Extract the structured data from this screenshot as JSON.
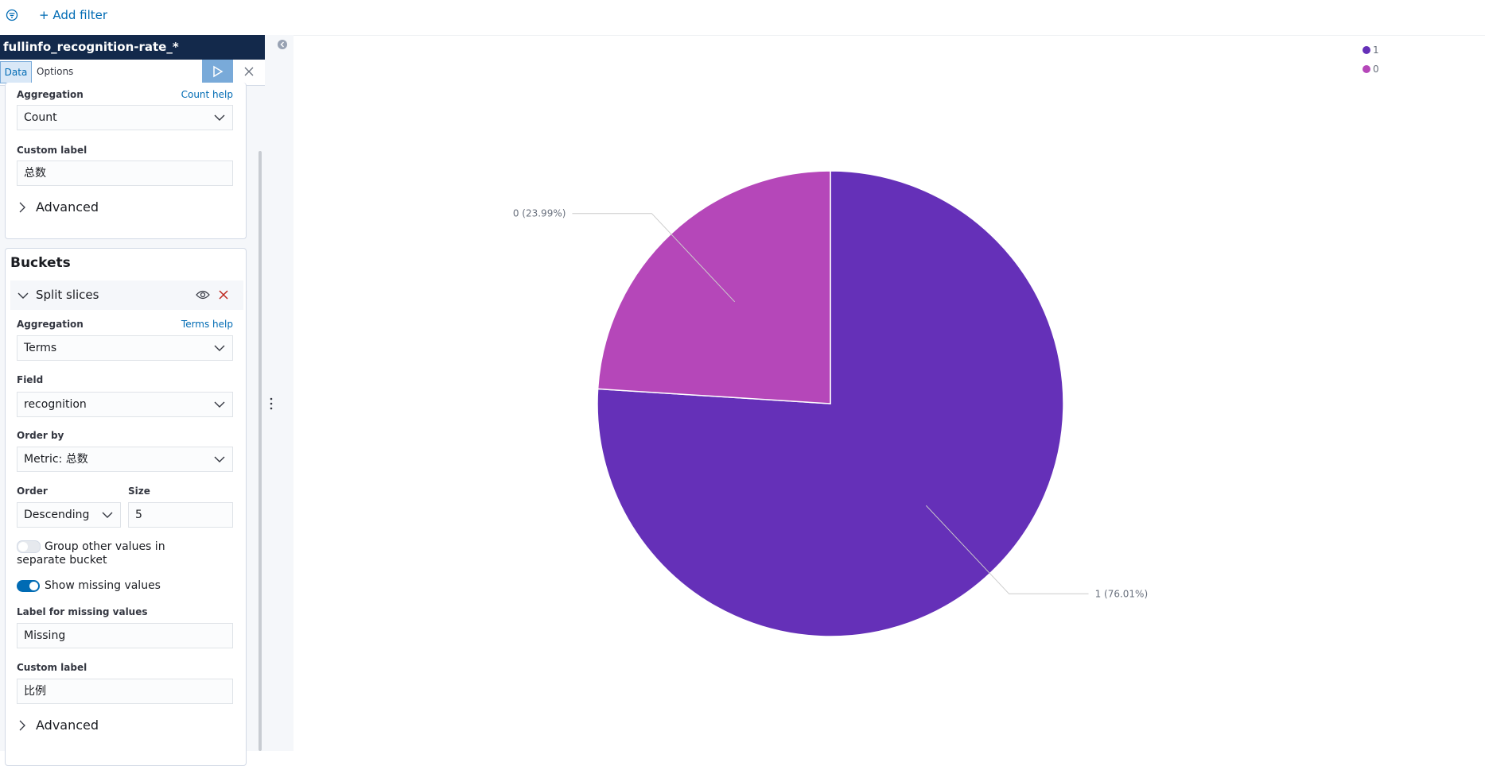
{
  "filter_bar": {
    "add_filter": "+ Add filter"
  },
  "sidebar": {
    "index_pattern": "fullinfo_recognition-rate_*",
    "tabs": [
      "Data",
      "Options"
    ],
    "metrics": {
      "aggregation_label": "Aggregation",
      "help": "Count help",
      "aggregation": "Count",
      "custom_label_label": "Custom label",
      "custom_label": "总数",
      "advanced": "Advanced"
    },
    "buckets": {
      "title": "Buckets",
      "split": "Split slices",
      "aggregation_label": "Aggregation",
      "help": "Terms help",
      "aggregation": "Terms",
      "field_label": "Field",
      "field": "recognition",
      "order_by_label": "Order by",
      "order_by": "Metric: 总数",
      "order_label": "Order",
      "order": "Descending",
      "size_label": "Size",
      "size": 5,
      "group_other": "Group other values in separate bucket",
      "show_missing": "Show missing values",
      "missing_label_label": "Label for missing values",
      "missing_label": "Missing",
      "custom_label_label": "Custom label",
      "custom_label": "比例",
      "advanced": "Advanced"
    }
  },
  "chart_data": {
    "type": "pie",
    "categories": [
      "1",
      "0"
    ],
    "values": [
      76.01,
      23.99
    ],
    "value_labels": [
      "1 (76.01%)",
      "0 (23.99%)"
    ],
    "colors": [
      "#6530b8",
      "#b547b9"
    ],
    "legend": "top-right"
  }
}
